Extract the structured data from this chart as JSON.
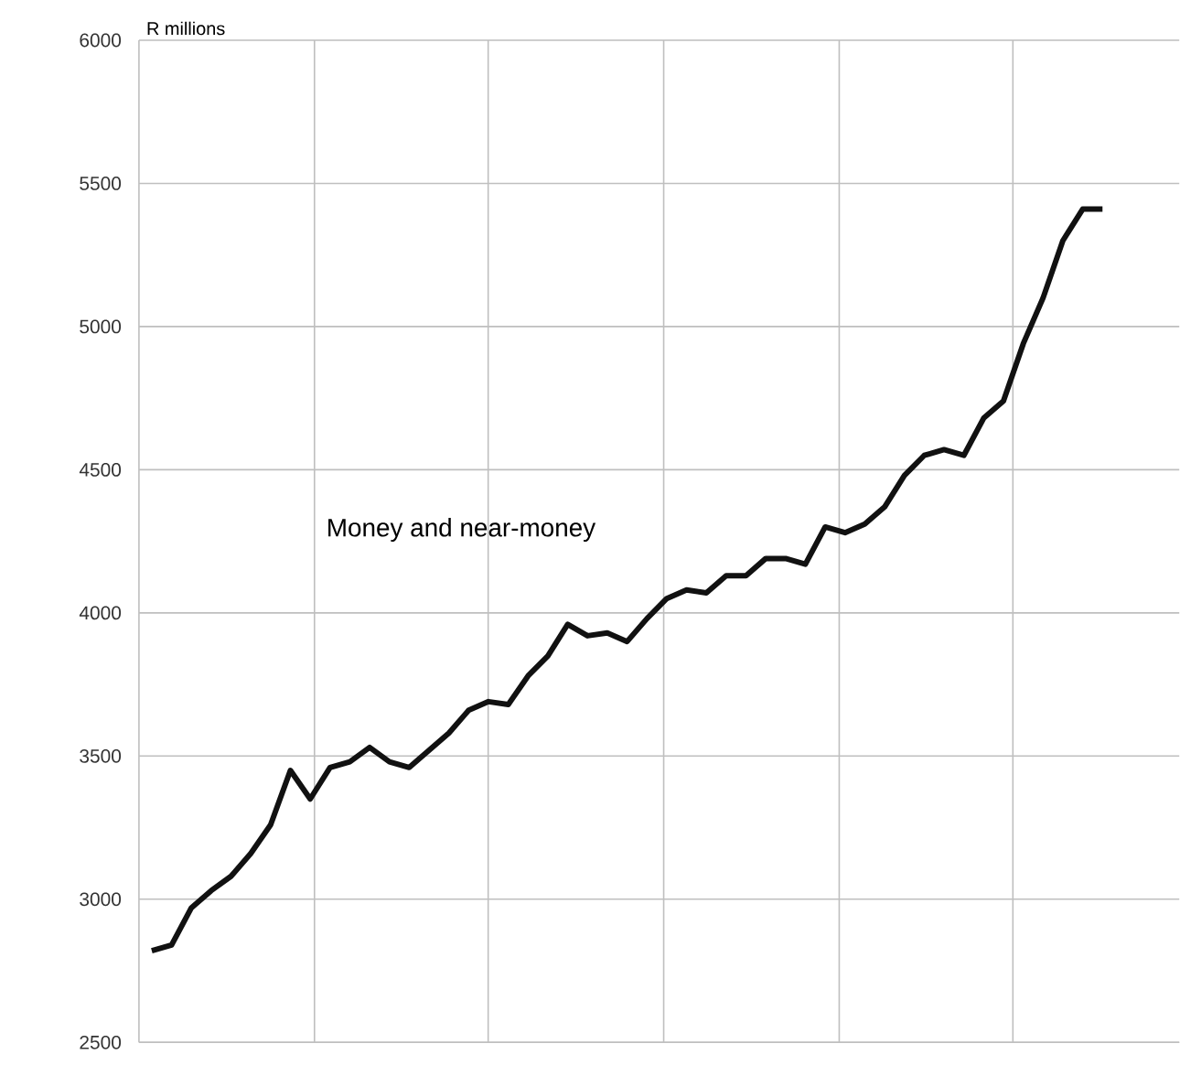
{
  "chart_data": {
    "type": "line",
    "ylabel": "R millions",
    "categories": [
      null,
      null,
      null,
      null,
      null,
      null,
      null,
      null,
      null,
      null,
      null,
      null,
      null,
      null,
      null,
      null,
      null,
      null,
      null,
      null,
      null,
      null,
      null,
      null,
      null,
      null,
      null,
      null,
      null,
      null,
      null,
      null,
      null,
      null,
      null,
      null,
      null,
      null,
      null,
      null,
      null,
      null,
      null,
      null,
      null,
      null,
      null,
      null,
      null
    ],
    "ylim": [
      2500,
      6000
    ],
    "yticks": [
      2500,
      3000,
      3500,
      4000,
      4500,
      5000,
      5500,
      6000
    ],
    "grid": true,
    "marker": "none",
    "line_style": "solid",
    "series": [
      {
        "name": "Money and near-money",
        "color": "#111111",
        "values": [
          2820,
          2840,
          2970,
          3030,
          3080,
          3160,
          3260,
          3450,
          3350,
          3460,
          3480,
          3530,
          3480,
          3460,
          3520,
          3580,
          3660,
          3690,
          3680,
          3780,
          3850,
          3960,
          3920,
          3930,
          3900,
          3980,
          4050,
          4080,
          4070,
          4130,
          4130,
          4190,
          4190,
          4170,
          4300,
          4280,
          4310,
          4370,
          4480,
          4550,
          4570,
          4550,
          4680,
          4740,
          4940,
          5100,
          5300,
          5410,
          5410
        ]
      }
    ]
  }
}
